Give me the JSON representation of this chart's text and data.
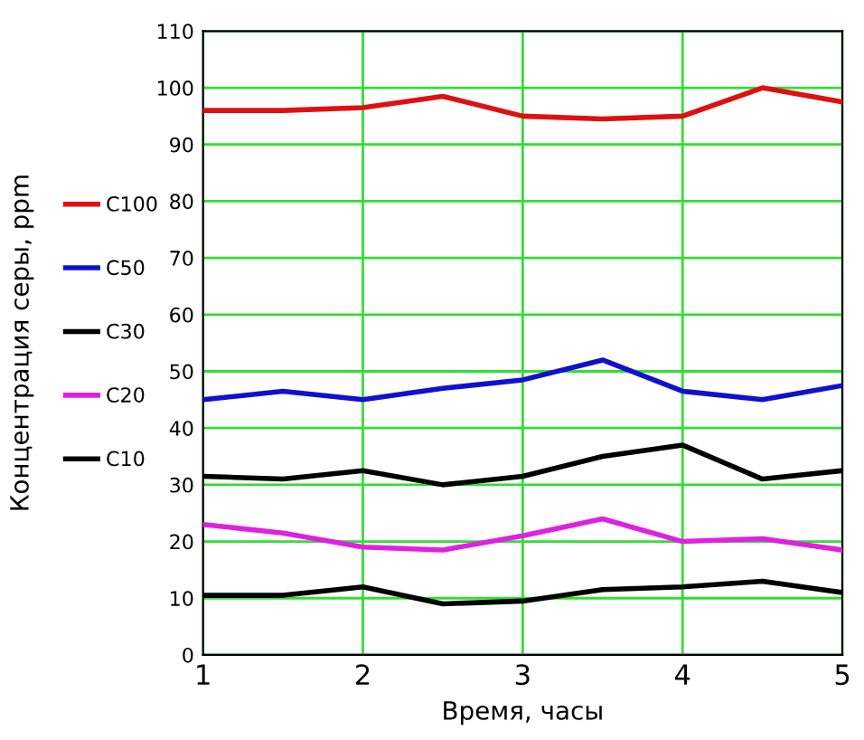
{
  "chart_data": {
    "type": "line",
    "xlabel": "Время, часы",
    "ylabel": "Концентрация серы, ppm",
    "x": [
      1,
      1.5,
      2,
      2.5,
      3,
      3.5,
      4,
      4.5,
      5
    ],
    "series": [
      {
        "name": "C100",
        "color": "#e01010",
        "values": [
          96,
          96,
          96.5,
          98.5,
          95,
          94.5,
          95,
          100,
          97.5
        ]
      },
      {
        "name": "C50",
        "color": "#1010d0",
        "values": [
          45,
          46.5,
          45,
          47,
          48.5,
          52,
          46.5,
          45,
          47.5
        ]
      },
      {
        "name": "C30",
        "color": "#000000",
        "values": [
          31.5,
          31,
          32.5,
          30,
          31.5,
          35,
          37,
          31,
          32.5
        ]
      },
      {
        "name": "C20",
        "color": "#e020e0",
        "values": [
          23,
          21.5,
          19,
          18.5,
          21,
          24,
          20,
          20.5,
          18.5
        ]
      },
      {
        "name": "C10",
        "color": "#000000",
        "values": [
          10.5,
          10.5,
          12,
          9,
          9.5,
          11.5,
          12,
          13,
          11
        ]
      }
    ],
    "xlim": [
      1,
      5
    ],
    "xticks": [
      1,
      2,
      3,
      4,
      5
    ],
    "ylim": [
      0,
      110
    ],
    "yticks": [
      0,
      10,
      20,
      30,
      40,
      50,
      60,
      70,
      80,
      90,
      100,
      110
    ],
    "grid": true,
    "legend": "left",
    "line_style": "solid",
    "marker": "none"
  }
}
